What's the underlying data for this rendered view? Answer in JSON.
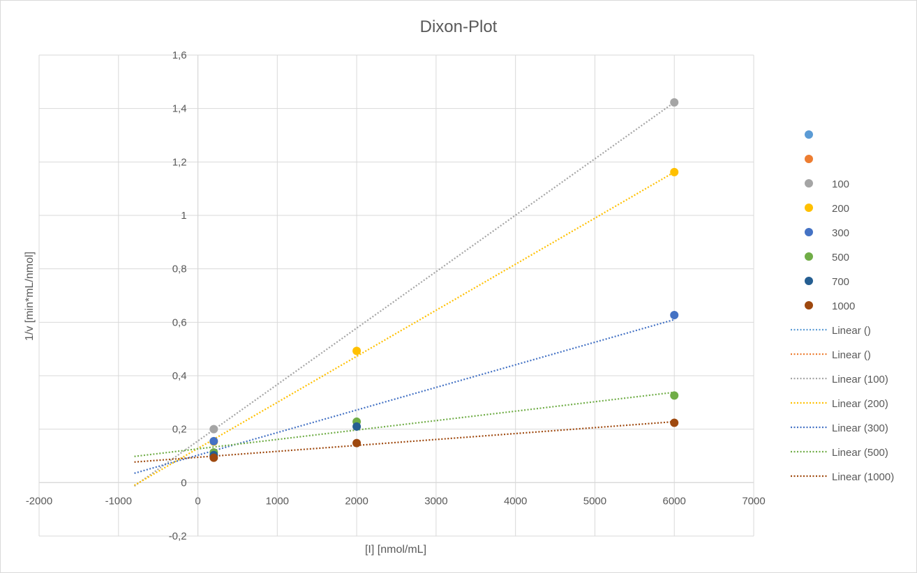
{
  "chart_data": {
    "type": "scatter",
    "title": "Dixon-Plot",
    "xlabel": "[I] [nmol/mL]",
    "ylabel": "1/v [min*mL/nmol]",
    "xlim": [
      -2000,
      7000
    ],
    "ylim": [
      -0.2,
      1.6
    ],
    "x_ticks": [
      -2000,
      -1000,
      0,
      1000,
      2000,
      3000,
      4000,
      5000,
      6000,
      7000
    ],
    "x_tick_labels": [
      "-2000",
      "-1000",
      "0",
      "1000",
      "2000",
      "3000",
      "4000",
      "5000",
      "6000",
      "7000"
    ],
    "y_ticks": [
      -0.2,
      0,
      0.2,
      0.4,
      0.6,
      0.8,
      1,
      1.2,
      1.4,
      1.6
    ],
    "y_tick_labels": [
      "-0,2",
      "0",
      "0,2",
      "0,4",
      "0,6",
      "0,8",
      "1",
      "1,2",
      "1,4",
      "1,6"
    ],
    "grid": true,
    "legend_position": "right",
    "series": [
      {
        "name": "",
        "color": "#5b9bd5",
        "points": []
      },
      {
        "name": "",
        "color": "#ed7d31",
        "points": []
      },
      {
        "name": "100",
        "color": "#a5a5a5",
        "points": [
          [
            200,
            0.2
          ],
          [
            6000,
            1.423
          ]
        ]
      },
      {
        "name": "200",
        "color": "#ffc000",
        "points": [
          [
            200,
            0.153
          ],
          [
            2000,
            0.493
          ],
          [
            6000,
            1.162
          ]
        ]
      },
      {
        "name": "300",
        "color": "#4472c4",
        "points": [
          [
            200,
            0.155
          ],
          [
            6000,
            0.627
          ]
        ]
      },
      {
        "name": "500",
        "color": "#70ad47",
        "points": [
          [
            200,
            0.113
          ],
          [
            2000,
            0.228
          ],
          [
            6000,
            0.326
          ]
        ]
      },
      {
        "name": "700",
        "color": "#255e91",
        "points": [
          [
            200,
            0.103
          ],
          [
            2000,
            0.21
          ]
        ]
      },
      {
        "name": "1000",
        "color": "#9e480e",
        "points": [
          [
            200,
            0.093
          ],
          [
            2000,
            0.148
          ],
          [
            6000,
            0.224
          ]
        ]
      }
    ],
    "trendlines": [
      {
        "name": "Linear ()",
        "color": "#5b9bd5",
        "segment": null
      },
      {
        "name": "Linear ()",
        "color": "#ed7d31",
        "segment": null
      },
      {
        "name": "Linear (100)",
        "color": "#a5a5a5",
        "segment": [
          [
            -800,
            -0.013
          ],
          [
            6000,
            1.423
          ]
        ]
      },
      {
        "name": "Linear (200)",
        "color": "#ffc000",
        "segment": [
          [
            -800,
            -0.01
          ],
          [
            6000,
            1.162
          ]
        ]
      },
      {
        "name": "Linear (300)",
        "color": "#4472c4",
        "segment": [
          [
            -800,
            0.035
          ],
          [
            6000,
            0.61
          ]
        ]
      },
      {
        "name": "Linear (500)",
        "color": "#70ad47",
        "segment": [
          [
            -800,
            0.098
          ],
          [
            6000,
            0.338
          ]
        ]
      },
      {
        "name": "Linear (1000)",
        "color": "#9e480e",
        "segment": [
          [
            -800,
            0.077
          ],
          [
            6000,
            0.228
          ]
        ]
      }
    ]
  }
}
